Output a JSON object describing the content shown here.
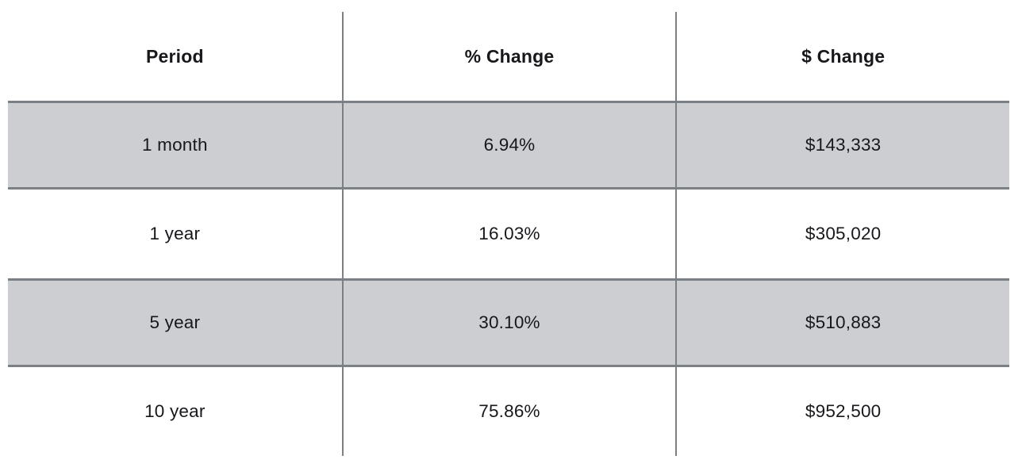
{
  "table": {
    "columns": [
      "Period",
      "% Change",
      "$ Change"
    ],
    "rows": [
      {
        "period": "1 month",
        "pct_change": "6.94%",
        "dollar_change": "$143,333"
      },
      {
        "period": "1 year",
        "pct_change": "16.03%",
        "dollar_change": "$305,020"
      },
      {
        "period": "5 year",
        "pct_change": "30.10%",
        "dollar_change": "$510,883"
      },
      {
        "period": "10 year",
        "pct_change": "75.86%",
        "dollar_change": "$952,500"
      }
    ],
    "colors": {
      "row_stripe": "#cdced2",
      "grid_line": "#7b8087",
      "text": "#17171c",
      "background": "#ffffff"
    }
  },
  "chart_data": {
    "type": "table",
    "title": "",
    "columns": [
      "Period",
      "% Change",
      "$ Change"
    ],
    "rows": [
      [
        "1 month",
        "6.94%",
        "$143,333"
      ],
      [
        "1 year",
        "16.03%",
        "$305,020"
      ],
      [
        "5 year",
        "30.10%",
        "$510,883"
      ],
      [
        "10 year",
        "75.86%",
        "$952,500"
      ]
    ],
    "categories": [
      "1 month",
      "1 year",
      "5 year",
      "10 year"
    ],
    "series": [
      {
        "name": "% Change",
        "values": [
          6.94,
          16.03,
          30.1,
          75.86
        ]
      },
      {
        "name": "$ Change",
        "values": [
          143333,
          305020,
          510883,
          952500
        ]
      }
    ],
    "layout_hints": "striped rows (rows 1 and 3 shaded gray), vertical separators between the 3 equal-width columns, horizontal borders only above/below shaded rows, all text center-aligned"
  }
}
